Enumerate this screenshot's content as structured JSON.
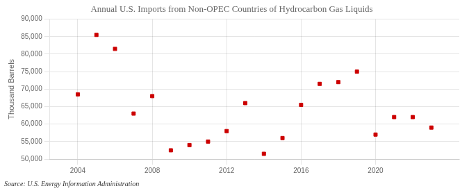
{
  "chart_data": {
    "type": "scatter",
    "title": "Annual U.S. Imports from Non-OPEC Countries of Hydrocarbon Gas Liquids",
    "y_label": "Thousand Barrels",
    "annotations": [
      "Source: U.S. Energy Information Administration"
    ],
    "x": [
      2004,
      2005,
      2006,
      2007,
      2008,
      2009,
      2010,
      2011,
      2012,
      2013,
      2014,
      2015,
      2016,
      2017,
      2018,
      2019,
      2020,
      2021,
      2022,
      2023
    ],
    "values": [
      68500,
      85500,
      81500,
      63000,
      68000,
      52500,
      54000,
      55000,
      58000,
      66000,
      51500,
      56000,
      65500,
      71500,
      72000,
      75000,
      57000,
      62000,
      62000,
      59000
    ],
    "color": "#cc0000",
    "marker": "square",
    "xlim": [
      2002.5,
      2024.5
    ],
    "xticks": [
      2004,
      2008,
      2012,
      2016,
      2020
    ],
    "ylim": [
      50000,
      90000
    ],
    "yticks": [
      {
        "value": 50000,
        "label": "50,000"
      },
      {
        "value": 55000,
        "label": "55,000"
      },
      {
        "value": 60000,
        "label": "60,000"
      },
      {
        "value": 65000,
        "label": "65,000"
      },
      {
        "value": 70000,
        "label": "70,000"
      },
      {
        "value": 75000,
        "label": "75,000"
      },
      {
        "value": 80000,
        "label": "80,000"
      },
      {
        "value": 85000,
        "label": "85,000"
      },
      {
        "value": 90000,
        "label": "90,000"
      }
    ],
    "grid": true
  }
}
